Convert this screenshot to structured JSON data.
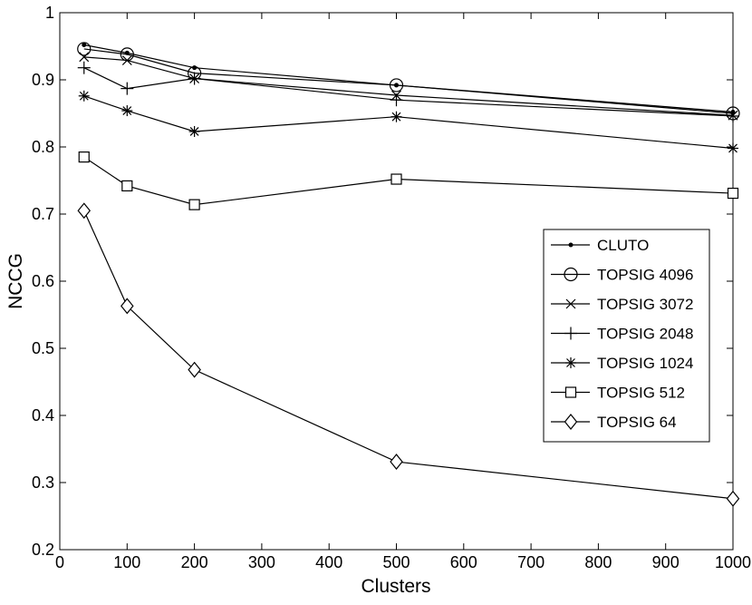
{
  "chart_data": {
    "type": "line",
    "title": "",
    "xlabel": "Clusters",
    "ylabel": "NCCG",
    "xlim": [
      0,
      1000
    ],
    "ylim": [
      0.2,
      1
    ],
    "xticks": [
      "0",
      "100",
      "200",
      "300",
      "400",
      "500",
      "600",
      "700",
      "800",
      "900",
      "1000"
    ],
    "yticks": [
      "0.2",
      "0.3",
      "0.4",
      "0.5",
      "0.6",
      "0.7",
      "0.8",
      "0.9",
      "1"
    ],
    "grid": false,
    "legend_position": "right-middle",
    "x": [
      36,
      100,
      200,
      500,
      1000
    ],
    "series": [
      {
        "name": "CLUTO",
        "marker": "dot",
        "values": [
          0.952,
          0.94,
          0.918,
          0.892,
          0.852
        ]
      },
      {
        "name": "TOPSIG 4096",
        "marker": "circle",
        "values": [
          0.946,
          0.938,
          0.91,
          0.892,
          0.85
        ]
      },
      {
        "name": "TOPSIG 3072",
        "marker": "x",
        "values": [
          0.934,
          0.929,
          0.902,
          0.877,
          0.847
        ]
      },
      {
        "name": "TOPSIG 2048",
        "marker": "plus",
        "values": [
          0.918,
          0.887,
          0.902,
          0.87,
          0.846
        ]
      },
      {
        "name": "TOPSIG 1024",
        "marker": "asterisk",
        "values": [
          0.876,
          0.854,
          0.823,
          0.845,
          0.798
        ]
      },
      {
        "name": "TOPSIG 512",
        "marker": "square",
        "values": [
          0.785,
          0.742,
          0.714,
          0.752,
          0.731
        ]
      },
      {
        "name": "TOPSIG 64",
        "marker": "diamond",
        "values": [
          0.705,
          0.563,
          0.468,
          0.331,
          0.276
        ]
      }
    ],
    "colors": {
      "line": "#000000",
      "background": "#ffffff"
    }
  }
}
